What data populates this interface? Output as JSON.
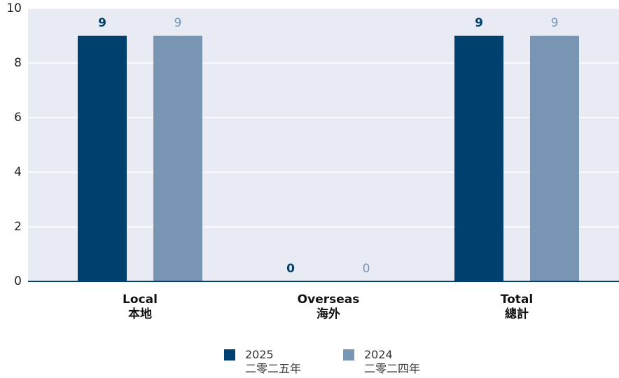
{
  "chart_data": {
    "type": "bar",
    "categories": [
      "Local\n本地",
      "Overseas\n海外",
      "Total\n總計"
    ],
    "series": [
      {
        "name": "2025\n二零二五年",
        "color": "#00406f",
        "values": [
          9,
          0,
          9
        ]
      },
      {
        "name": "2024\n二零二四年",
        "color": "#7896b4",
        "values": [
          9,
          0,
          9
        ]
      }
    ],
    "ylim": [
      0,
      10
    ],
    "yticks": [
      0,
      2,
      4,
      6,
      8,
      10
    ],
    "grid": true
  }
}
